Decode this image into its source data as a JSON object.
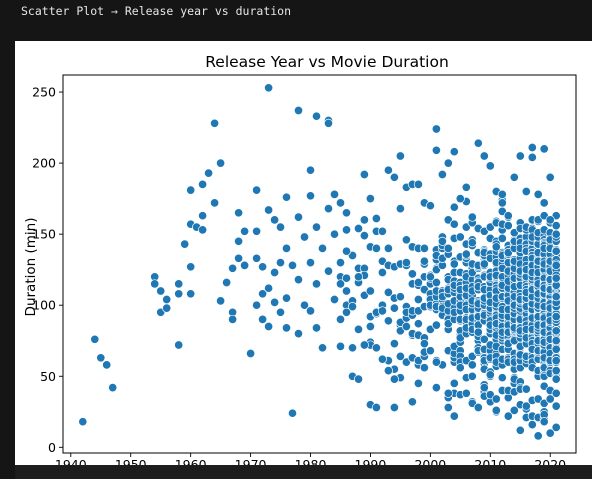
{
  "header": {
    "caption": "Scatter Plot → Release year vs duration"
  },
  "colors": {
    "point": "#1f77b4",
    "point_edge": "#ffffff",
    "background": "#151515"
  },
  "chart_data": {
    "type": "scatter",
    "title": "Release Year vs Movie Duration",
    "xlabel": "",
    "ylabel": "Duration (min)",
    "xlim": [
      1938.7,
      2024.3
    ],
    "ylim": [
      -4,
      262
    ],
    "xticks": [
      1940,
      1950,
      1960,
      1970,
      1980,
      1990,
      2000,
      2010,
      2020
    ],
    "yticks": [
      0,
      50,
      100,
      150,
      200,
      250
    ],
    "grid": false,
    "legend": "none",
    "points": [
      [
        1942,
        18
      ],
      [
        1944,
        76
      ],
      [
        1945,
        63
      ],
      [
        1946,
        58
      ],
      [
        1947,
        42
      ],
      [
        1954,
        120
      ],
      [
        1954,
        115
      ],
      [
        1955,
        110
      ],
      [
        1955,
        95
      ],
      [
        1956,
        104
      ],
      [
        1956,
        98
      ],
      [
        1958,
        115
      ],
      [
        1958,
        108
      ],
      [
        1958,
        72
      ],
      [
        1959,
        143
      ],
      [
        1960,
        181
      ],
      [
        1960,
        157
      ],
      [
        1960,
        127
      ],
      [
        1960,
        108
      ],
      [
        1961,
        155
      ],
      [
        1962,
        185
      ],
      [
        1962,
        163
      ],
      [
        1962,
        153
      ],
      [
        1963,
        193
      ],
      [
        1964,
        228
      ],
      [
        1964,
        172
      ],
      [
        1965,
        200
      ],
      [
        1965,
        103
      ],
      [
        1966,
        116
      ],
      [
        1967,
        95
      ],
      [
        1967,
        90
      ],
      [
        1967,
        126
      ],
      [
        1968,
        165
      ],
      [
        1968,
        145
      ],
      [
        1968,
        133
      ],
      [
        1969,
        152
      ],
      [
        1969,
        128
      ],
      [
        1970,
        66
      ],
      [
        1971,
        181
      ],
      [
        1971,
        152
      ],
      [
        1971,
        133
      ],
      [
        1971,
        100
      ],
      [
        1972,
        127
      ],
      [
        1972,
        108
      ],
      [
        1972,
        90
      ],
      [
        1973,
        253
      ],
      [
        1973,
        167
      ],
      [
        1973,
        112
      ],
      [
        1973,
        85
      ],
      [
        1974,
        160
      ],
      [
        1974,
        123
      ],
      [
        1974,
        102
      ],
      [
        1975,
        155
      ],
      [
        1975,
        130
      ],
      [
        1975,
        95
      ],
      [
        1976,
        176
      ],
      [
        1976,
        140
      ],
      [
        1976,
        105
      ],
      [
        1976,
        84
      ],
      [
        1977,
        24
      ],
      [
        1977,
        128
      ],
      [
        1978,
        237
      ],
      [
        1978,
        162
      ],
      [
        1978,
        118
      ],
      [
        1978,
        80
      ],
      [
        1979,
        148
      ],
      [
        1979,
        100
      ],
      [
        1980,
        195
      ],
      [
        1980,
        177
      ],
      [
        1980,
        130
      ],
      [
        1980,
        96
      ],
      [
        1981,
        233
      ],
      [
        1981,
        155
      ],
      [
        1981,
        115
      ],
      [
        1981,
        84
      ],
      [
        1982,
        70
      ],
      [
        1982,
        140
      ],
      [
        1983,
        230
      ],
      [
        1983,
        228
      ],
      [
        1983,
        168
      ],
      [
        1983,
        124
      ],
      [
        1984,
        178
      ],
      [
        1984,
        150
      ],
      [
        1984,
        104
      ],
      [
        1985,
        172
      ],
      [
        1985,
        130
      ],
      [
        1986,
        165
      ],
      [
        1986,
        138
      ],
      [
        1986,
        95
      ],
      [
        1987,
        50
      ],
      [
        1988,
        48
      ],
      [
        1988,
        120
      ],
      [
        1989,
        192
      ],
      [
        1989,
        160
      ],
      [
        1989,
        72
      ],
      [
        1990,
        30
      ],
      [
        1990,
        175
      ],
      [
        1990,
        110
      ],
      [
        1990,
        85
      ],
      [
        1991,
        28
      ],
      [
        1991,
        140
      ],
      [
        1992,
        62
      ],
      [
        1992,
        152
      ],
      [
        1993,
        54
      ],
      [
        1993,
        195
      ],
      [
        1994,
        190
      ],
      [
        1994,
        48
      ],
      [
        1995,
        205
      ],
      [
        1995,
        168
      ],
      [
        1996,
        183
      ],
      [
        1996,
        130
      ],
      [
        1997,
        32
      ],
      [
        1997,
        185
      ],
      [
        1998,
        185
      ],
      [
        1999,
        172
      ],
      [
        1999,
        140
      ],
      [
        2000,
        170
      ],
      [
        2001,
        224
      ],
      [
        2001,
        209
      ],
      [
        2001,
        42
      ],
      [
        2001,
        60
      ],
      [
        2002,
        192
      ],
      [
        2003,
        200
      ],
      [
        2003,
        38
      ],
      [
        2004,
        208
      ],
      [
        2004,
        45
      ],
      [
        2005,
        175
      ],
      [
        2006,
        183
      ],
      [
        2007,
        162
      ],
      [
        2008,
        214
      ],
      [
        2008,
        28
      ],
      [
        2009,
        205
      ],
      [
        2010,
        198
      ],
      [
        2011,
        26
      ],
      [
        2011,
        180
      ],
      [
        2012,
        178
      ],
      [
        2013,
        22
      ],
      [
        2014,
        190
      ],
      [
        2015,
        205
      ],
      [
        2015,
        12
      ],
      [
        2016,
        180
      ],
      [
        2017,
        211
      ],
      [
        2017,
        204
      ],
      [
        2017,
        16
      ],
      [
        2018,
        178
      ],
      [
        2018,
        8
      ],
      [
        2019,
        210
      ],
      [
        2019,
        172
      ],
      [
        2019,
        18
      ],
      [
        2020,
        190
      ],
      [
        2020,
        160
      ],
      [
        2020,
        10
      ],
      [
        2021,
        150
      ],
      [
        2021,
        14
      ]
    ]
  }
}
